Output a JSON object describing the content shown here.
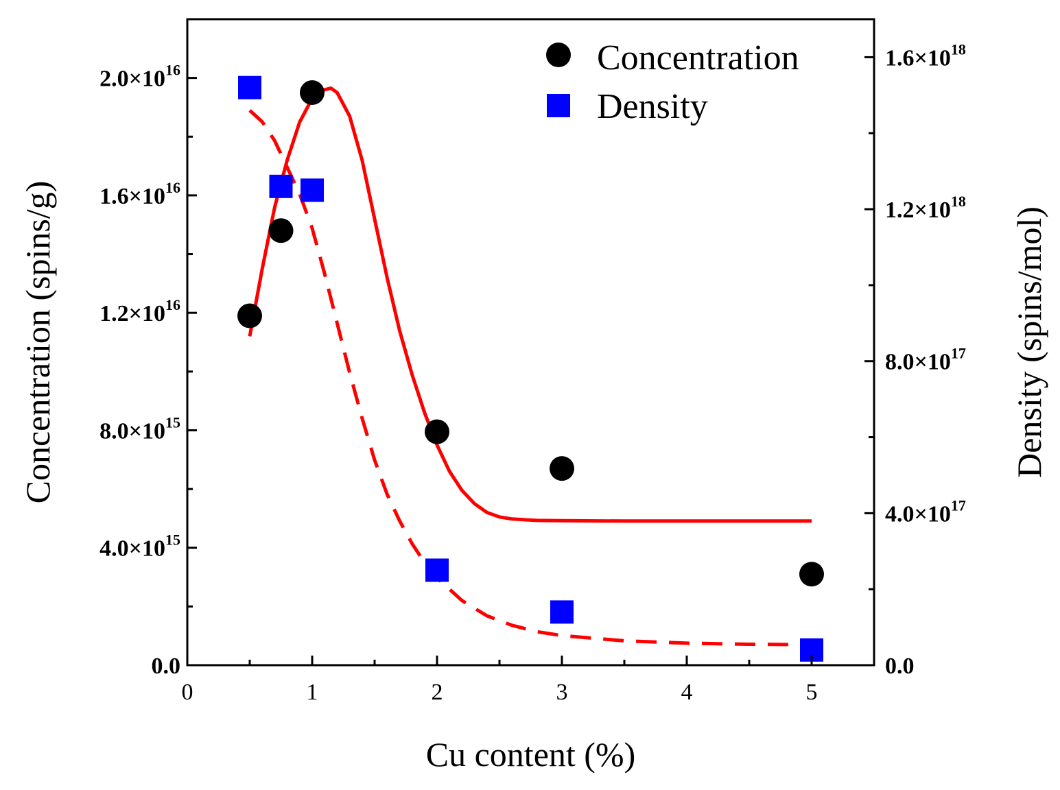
{
  "chart_data": {
    "type": "scatter",
    "title": "",
    "xlabel": "Cu content (%)",
    "ylabel_left": "Concentration (spins/g)",
    "ylabel_right": "Density (spins/mol)",
    "xlim": [
      0,
      5.5
    ],
    "ylim_left": [
      0,
      2.2e+16
    ],
    "ylim_right": [
      0,
      1.7e+18
    ],
    "x_ticks": [
      {
        "value": 0,
        "label": "0"
      },
      {
        "value": 1,
        "label": "1"
      },
      {
        "value": 2,
        "label": "2"
      },
      {
        "value": 3,
        "label": "3"
      },
      {
        "value": 4,
        "label": "4"
      },
      {
        "value": 5,
        "label": "5"
      }
    ],
    "y_left_ticks": [
      {
        "value": 0,
        "mantissa": "0.0",
        "exponent": ""
      },
      {
        "value": 4000000000000000.0,
        "mantissa": "4.0×10",
        "exponent": "15"
      },
      {
        "value": 8000000000000000.0,
        "mantissa": "8.0×10",
        "exponent": "15"
      },
      {
        "value": 1.2e+16,
        "mantissa": "1.2×10",
        "exponent": "16"
      },
      {
        "value": 1.6e+16,
        "mantissa": "1.6×10",
        "exponent": "16"
      },
      {
        "value": 2e+16,
        "mantissa": "2.0×10",
        "exponent": "16"
      }
    ],
    "y_right_ticks": [
      {
        "value": 0,
        "mantissa": "0.0",
        "exponent": ""
      },
      {
        "value": 4e+17,
        "mantissa": "4.0×10",
        "exponent": "17"
      },
      {
        "value": 8e+17,
        "mantissa": "8.0×10",
        "exponent": "17"
      },
      {
        "value": 1.2e+18,
        "mantissa": "1.2×10",
        "exponent": "18"
      },
      {
        "value": 1.6e+18,
        "mantissa": "1.6×10",
        "exponent": "18"
      }
    ],
    "series": [
      {
        "name": "Concentration",
        "axis": "left",
        "marker": "circle",
        "color": "#000000",
        "x": [
          0.5,
          0.75,
          1.0,
          2.0,
          3.0,
          5.0
        ],
        "y": [
          1.19e+16,
          1.48e+16,
          1.95e+16,
          7950000000000000.0,
          6700000000000000.0,
          3100000000000000.0
        ]
      },
      {
        "name": "Density",
        "axis": "right",
        "marker": "square",
        "color": "#0000ff",
        "x": [
          0.5,
          0.75,
          1.0,
          2.0,
          3.0,
          5.0
        ],
        "y": [
          1.52e+18,
          1.26e+18,
          1.25e+18,
          2.5e+17,
          1.4e+17,
          4e+16
        ]
      }
    ],
    "fits": [
      {
        "name": "concentration-fit",
        "axis": "left",
        "style": "solid",
        "color": "#ff0000",
        "x": [
          0.5,
          0.6,
          0.7,
          0.8,
          0.9,
          1.0,
          1.1,
          1.15,
          1.2,
          1.3,
          1.4,
          1.5,
          1.6,
          1.7,
          1.8,
          1.9,
          2.0,
          2.1,
          2.2,
          2.3,
          2.4,
          2.5,
          2.6,
          2.8,
          3.0,
          3.5,
          4.0,
          4.5,
          5.0
        ],
        "y": [
          1.12e+16,
          1.35e+16,
          1.56e+16,
          1.72e+16,
          1.85e+16,
          1.93e+16,
          1.96e+16,
          1.965e+16,
          1.95e+16,
          1.87e+16,
          1.72e+16,
          1.52e+16,
          1.32e+16,
          1.14e+16,
          9900000000000000.0,
          8600000000000000.0,
          7500000000000000.0,
          6600000000000000.0,
          5950000000000000.0,
          5500000000000000.0,
          5200000000000000.0,
          5050000000000000.0,
          4980000000000000.0,
          4930000000000000.0,
          4920000000000000.0,
          4910000000000000.0,
          4910000000000000.0,
          4910000000000000.0,
          4910000000000000.0
        ]
      },
      {
        "name": "density-fit",
        "axis": "right",
        "style": "dashed",
        "color": "#ff0000",
        "x": [
          0.5,
          0.6,
          0.7,
          0.8,
          0.9,
          1.0,
          1.1,
          1.2,
          1.3,
          1.4,
          1.5,
          1.6,
          1.7,
          1.8,
          1.9,
          2.0,
          2.2,
          2.4,
          2.6,
          2.8,
          3.0,
          3.5,
          4.0,
          4.5,
          5.0
        ],
        "y": [
          1.46e+18,
          1.43e+18,
          1.38e+18,
          1.31e+18,
          1.24e+18,
          1.15e+18,
          1.03e+18,
          9e+17,
          7.7e+17,
          6.5e+17,
          5.4e+17,
          4.5e+17,
          3.8e+17,
          3.2e+17,
          2.7e+17,
          2.3e+17,
          1.7e+17,
          1.3e+17,
          1.05e+17,
          8.8e+16,
          7.8e+16,
          6.4e+16,
          5.8e+16,
          5.5e+16,
          5.4e+16
        ]
      }
    ],
    "legend": {
      "position": "top-right",
      "items": [
        {
          "label": "Concentration",
          "marker": "circle",
          "color": "#000000"
        },
        {
          "label": "Density",
          "marker": "square",
          "color": "#0000ff"
        }
      ]
    }
  }
}
